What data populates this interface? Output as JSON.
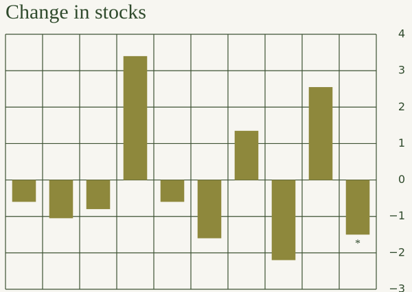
{
  "chart_data": {
    "type": "bar",
    "title": "Change in stocks",
    "categories": [
      null,
      null,
      null,
      null,
      null,
      null,
      null,
      null,
      null,
      null
    ],
    "values": [
      -0.6,
      -1.05,
      -0.8,
      3.4,
      -0.6,
      -1.6,
      1.35,
      -2.2,
      2.55,
      -1.5
    ],
    "color": "#8e883c",
    "ylim": [
      -3,
      4
    ],
    "yticks": [
      4,
      3,
      2,
      1,
      0,
      {
        "value": -1,
        "label": "−1"
      },
      {
        "value": -2,
        "label": "−2"
      },
      {
        "value": -3,
        "label": "−3"
      }
    ],
    "grid": true,
    "annotation": "*"
  }
}
